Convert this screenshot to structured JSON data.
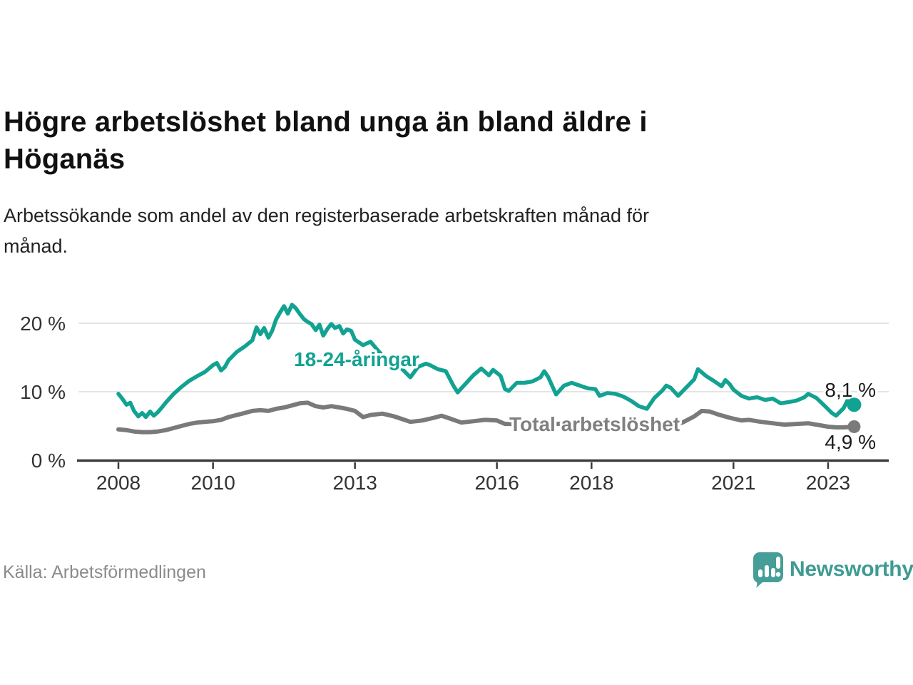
{
  "header": {
    "title_lines": [
      "Högre arbetslöshet bland unga än bland äldre i",
      "Höganäs"
    ],
    "subtitle_lines": [
      "Arbetssökande som andel av den registerbaserade arbetskraften månad för",
      "månad."
    ]
  },
  "chart_data": {
    "type": "line",
    "title": "Högre arbetslöshet bland unga än bland äldre i Höganäs",
    "subtitle": "Arbetssökande som andel av den registerbaserade arbetskraften månad för månad.",
    "grid": "horizontal",
    "legend_position": "inline-labels",
    "x_axis": {
      "label": "",
      "ticks": [
        2008,
        2010,
        2013,
        2016,
        2018,
        2021,
        2023
      ],
      "tick_labels": [
        "2008",
        "2010",
        "2013",
        "2016",
        "2018",
        "2021",
        "2023"
      ],
      "range": [
        2007.15,
        2024.2
      ]
    },
    "y_axis": {
      "label": "",
      "unit": "%",
      "ticks": [
        0,
        10,
        20
      ],
      "tick_labels": [
        "0 %",
        "10 %",
        "20 %"
      ],
      "range": [
        0,
        23.5
      ]
    },
    "series": [
      {
        "name": "18-24-åringar",
        "color": "#12a292",
        "end_value": 8.1,
        "end_label": "8,1 %",
        "points": [
          [
            2008.0,
            9.7
          ],
          [
            2008.08,
            9.0
          ],
          [
            2008.17,
            8.1
          ],
          [
            2008.25,
            8.4
          ],
          [
            2008.33,
            7.2
          ],
          [
            2008.42,
            6.4
          ],
          [
            2008.5,
            6.9
          ],
          [
            2008.58,
            6.3
          ],
          [
            2008.67,
            7.1
          ],
          [
            2008.75,
            6.5
          ],
          [
            2008.83,
            7.0
          ],
          [
            2008.92,
            7.7
          ],
          [
            2009.0,
            8.4
          ],
          [
            2009.17,
            9.7
          ],
          [
            2009.33,
            10.7
          ],
          [
            2009.5,
            11.6
          ],
          [
            2009.67,
            12.3
          ],
          [
            2009.83,
            12.9
          ],
          [
            2010.0,
            13.9
          ],
          [
            2010.08,
            14.2
          ],
          [
            2010.17,
            13.1
          ],
          [
            2010.25,
            13.6
          ],
          [
            2010.33,
            14.6
          ],
          [
            2010.5,
            15.8
          ],
          [
            2010.67,
            16.6
          ],
          [
            2010.83,
            17.5
          ],
          [
            2010.92,
            19.4
          ],
          [
            2011.0,
            18.4
          ],
          [
            2011.08,
            19.3
          ],
          [
            2011.17,
            17.9
          ],
          [
            2011.25,
            18.9
          ],
          [
            2011.33,
            20.5
          ],
          [
            2011.42,
            21.6
          ],
          [
            2011.5,
            22.5
          ],
          [
            2011.58,
            21.4
          ],
          [
            2011.67,
            22.7
          ],
          [
            2011.75,
            22.2
          ],
          [
            2011.83,
            21.4
          ],
          [
            2011.92,
            20.6
          ],
          [
            2012.0,
            20.2
          ],
          [
            2012.08,
            19.9
          ],
          [
            2012.17,
            19.0
          ],
          [
            2012.25,
            19.8
          ],
          [
            2012.33,
            18.2
          ],
          [
            2012.42,
            19.2
          ],
          [
            2012.5,
            19.9
          ],
          [
            2012.58,
            19.3
          ],
          [
            2012.67,
            19.6
          ],
          [
            2012.75,
            18.5
          ],
          [
            2012.83,
            19.1
          ],
          [
            2012.92,
            18.9
          ],
          [
            2013.0,
            17.6
          ],
          [
            2013.17,
            16.8
          ],
          [
            2013.33,
            17.3
          ],
          [
            2013.5,
            15.9
          ],
          [
            2013.67,
            14.6
          ],
          [
            2013.83,
            13.9
          ],
          [
            2014.0,
            13.3
          ],
          [
            2014.17,
            12.1
          ],
          [
            2014.33,
            13.6
          ],
          [
            2014.5,
            14.1
          ],
          [
            2014.58,
            13.9
          ],
          [
            2014.75,
            13.3
          ],
          [
            2014.92,
            13.0
          ],
          [
            2015.08,
            10.9
          ],
          [
            2015.17,
            9.9
          ],
          [
            2015.33,
            11.1
          ],
          [
            2015.5,
            12.4
          ],
          [
            2015.67,
            13.4
          ],
          [
            2015.83,
            12.4
          ],
          [
            2015.92,
            13.2
          ],
          [
            2016.08,
            12.3
          ],
          [
            2016.17,
            10.4
          ],
          [
            2016.25,
            10.1
          ],
          [
            2016.42,
            11.3
          ],
          [
            2016.58,
            11.3
          ],
          [
            2016.75,
            11.5
          ],
          [
            2016.92,
            12.1
          ],
          [
            2017.0,
            13.0
          ],
          [
            2017.08,
            12.2
          ],
          [
            2017.25,
            9.6
          ],
          [
            2017.42,
            10.9
          ],
          [
            2017.58,
            11.3
          ],
          [
            2017.75,
            10.9
          ],
          [
            2017.92,
            10.5
          ],
          [
            2018.08,
            10.4
          ],
          [
            2018.17,
            9.4
          ],
          [
            2018.33,
            9.8
          ],
          [
            2018.5,
            9.7
          ],
          [
            2018.67,
            9.3
          ],
          [
            2018.83,
            8.7
          ],
          [
            2019.0,
            7.9
          ],
          [
            2019.17,
            7.5
          ],
          [
            2019.33,
            9.1
          ],
          [
            2019.5,
            10.2
          ],
          [
            2019.58,
            10.9
          ],
          [
            2019.67,
            10.6
          ],
          [
            2019.83,
            9.4
          ],
          [
            2020.0,
            10.6
          ],
          [
            2020.17,
            11.8
          ],
          [
            2020.25,
            13.3
          ],
          [
            2020.42,
            12.3
          ],
          [
            2020.58,
            11.6
          ],
          [
            2020.75,
            10.8
          ],
          [
            2020.83,
            11.7
          ],
          [
            2020.92,
            11.1
          ],
          [
            2021.0,
            10.3
          ],
          [
            2021.17,
            9.4
          ],
          [
            2021.33,
            9.0
          ],
          [
            2021.5,
            9.2
          ],
          [
            2021.67,
            8.8
          ],
          [
            2021.83,
            9.0
          ],
          [
            2022.0,
            8.3
          ],
          [
            2022.17,
            8.5
          ],
          [
            2022.33,
            8.7
          ],
          [
            2022.5,
            9.2
          ],
          [
            2022.58,
            9.7
          ],
          [
            2022.75,
            9.1
          ],
          [
            2022.92,
            8.0
          ],
          [
            2023.08,
            6.9
          ],
          [
            2023.17,
            6.5
          ],
          [
            2023.33,
            7.6
          ],
          [
            2023.42,
            8.9
          ],
          [
            2023.55,
            8.1
          ]
        ]
      },
      {
        "name": "Total arbetslöshet",
        "color": "#7a7a7a",
        "end_value": 4.9,
        "end_label": "4,9 %",
        "points": [
          [
            2008.0,
            4.5
          ],
          [
            2008.17,
            4.4
          ],
          [
            2008.33,
            4.2
          ],
          [
            2008.5,
            4.1
          ],
          [
            2008.67,
            4.1
          ],
          [
            2008.83,
            4.2
          ],
          [
            2009.0,
            4.4
          ],
          [
            2009.17,
            4.7
          ],
          [
            2009.33,
            5.0
          ],
          [
            2009.5,
            5.3
          ],
          [
            2009.67,
            5.5
          ],
          [
            2009.83,
            5.6
          ],
          [
            2010.0,
            5.7
          ],
          [
            2010.17,
            5.9
          ],
          [
            2010.33,
            6.3
          ],
          [
            2010.5,
            6.6
          ],
          [
            2010.67,
            6.9
          ],
          [
            2010.83,
            7.2
          ],
          [
            2011.0,
            7.3
          ],
          [
            2011.17,
            7.2
          ],
          [
            2011.33,
            7.5
          ],
          [
            2011.5,
            7.7
          ],
          [
            2011.67,
            8.0
          ],
          [
            2011.83,
            8.3
          ],
          [
            2012.0,
            8.4
          ],
          [
            2012.17,
            7.9
          ],
          [
            2012.33,
            7.7
          ],
          [
            2012.5,
            7.9
          ],
          [
            2012.67,
            7.7
          ],
          [
            2012.83,
            7.5
          ],
          [
            2013.0,
            7.2
          ],
          [
            2013.17,
            6.3
          ],
          [
            2013.33,
            6.6
          ],
          [
            2013.58,
            6.8
          ],
          [
            2013.83,
            6.4
          ],
          [
            2014.0,
            6.0
          ],
          [
            2014.17,
            5.6
          ],
          [
            2014.42,
            5.8
          ],
          [
            2014.67,
            6.2
          ],
          [
            2014.83,
            6.5
          ],
          [
            2015.0,
            6.1
          ],
          [
            2015.25,
            5.5
          ],
          [
            2015.5,
            5.7
          ],
          [
            2015.75,
            5.9
          ],
          [
            2016.0,
            5.8
          ],
          [
            2016.17,
            5.3
          ],
          [
            2016.42,
            5.3
          ],
          [
            2016.67,
            5.4
          ],
          [
            2016.92,
            5.5
          ],
          [
            2017.25,
            5.3
          ],
          [
            2017.58,
            5.4
          ],
          [
            2017.92,
            5.1
          ],
          [
            2018.25,
            5.0
          ],
          [
            2018.58,
            4.9
          ],
          [
            2018.92,
            4.8
          ],
          [
            2019.25,
            4.9
          ],
          [
            2019.58,
            5.1
          ],
          [
            2019.92,
            5.5
          ],
          [
            2020.17,
            6.4
          ],
          [
            2020.33,
            7.2
          ],
          [
            2020.5,
            7.1
          ],
          [
            2020.67,
            6.7
          ],
          [
            2020.92,
            6.2
          ],
          [
            2021.17,
            5.8
          ],
          [
            2021.33,
            5.9
          ],
          [
            2021.58,
            5.6
          ],
          [
            2021.83,
            5.4
          ],
          [
            2022.08,
            5.2
          ],
          [
            2022.33,
            5.3
          ],
          [
            2022.58,
            5.4
          ],
          [
            2022.83,
            5.1
          ],
          [
            2023.0,
            4.9
          ],
          [
            2023.17,
            4.8
          ],
          [
            2023.33,
            4.8
          ],
          [
            2023.55,
            4.9
          ]
        ]
      }
    ]
  },
  "footer": {
    "source": "Källa: Arbetsförmedlingen",
    "brand": "Newsworthy"
  },
  "colors": {
    "youth_line": "#12a292",
    "total_line": "#7a7a7a",
    "gridline": "#dcdcdc",
    "axis": "#3a3a3a",
    "brand_teal": "#459e97"
  }
}
